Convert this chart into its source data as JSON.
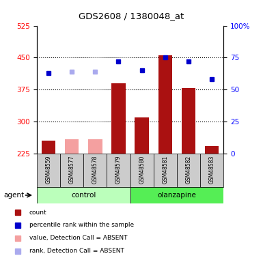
{
  "title": "GDS2608 / 1380048_at",
  "samples": [
    "GSM48559",
    "GSM48577",
    "GSM48578",
    "GSM48579",
    "GSM48580",
    "GSM48581",
    "GSM48582",
    "GSM48583"
  ],
  "groups": [
    "control",
    "control",
    "control",
    "control",
    "olanzapine",
    "olanzapine",
    "olanzapine",
    "olanzapine"
  ],
  "bar_values": [
    255,
    258,
    258,
    390,
    310,
    455,
    378,
    242
  ],
  "bar_absent": [
    false,
    true,
    true,
    false,
    false,
    false,
    false,
    false
  ],
  "rank_values": [
    63,
    64,
    64,
    72,
    65,
    75,
    72,
    58
  ],
  "rank_absent": [
    false,
    true,
    true,
    false,
    false,
    false,
    false,
    false
  ],
  "ylim_left": [
    225,
    525
  ],
  "ylim_right": [
    0,
    100
  ],
  "yticks_left": [
    225,
    300,
    375,
    450,
    525
  ],
  "yticks_right": [
    0,
    25,
    50,
    75,
    100
  ],
  "bar_color_present": "#aa1111",
  "bar_color_absent": "#f4a0a0",
  "rank_color_present": "#0000cc",
  "rank_color_absent": "#aaaaee",
  "control_color": "#bbffbb",
  "olanzapine_color": "#55ee55",
  "sample_bg_color": "#cccccc",
  "agent_label": "agent",
  "group_label_control": "control",
  "group_label_olanzapine": "olanzapine",
  "legend_items": [
    {
      "label": "count",
      "color": "#aa1111"
    },
    {
      "label": "percentile rank within the sample",
      "color": "#0000cc"
    },
    {
      "label": "value, Detection Call = ABSENT",
      "color": "#f4a0a0"
    },
    {
      "label": "rank, Detection Call = ABSENT",
      "color": "#aaaaee"
    }
  ],
  "figsize": [
    3.85,
    3.75
  ],
  "dpi": 100
}
